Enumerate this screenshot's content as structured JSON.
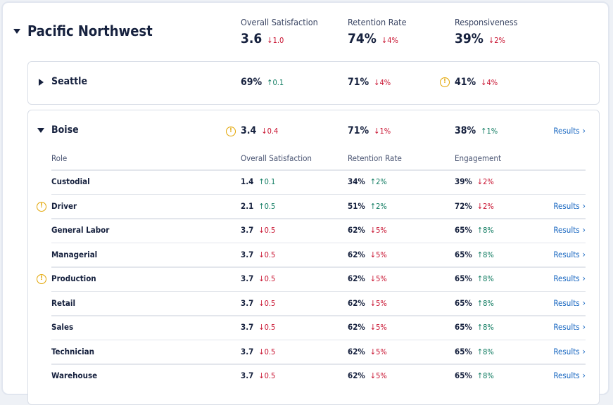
{
  "region": {
    "name": "Pacific Northwest",
    "metrics": [
      {
        "label": "Overall Satisfaction",
        "value": "3.6",
        "delta": "1.0",
        "dir": "down"
      },
      {
        "label": "Retention Rate",
        "value": "74%",
        "delta": "4%",
        "dir": "down"
      },
      {
        "label": "Responsiveness",
        "value": "39%",
        "delta": "2%",
        "dir": "down"
      }
    ]
  },
  "seattle": {
    "name": "Seattle",
    "metrics": [
      {
        "value": "69%",
        "delta": "0.1",
        "dir": "up",
        "warning": false
      },
      {
        "value": "71%",
        "delta": "4%",
        "dir": "down",
        "warning": false
      },
      {
        "value": "41%",
        "delta": "4%",
        "dir": "down",
        "warning": true
      }
    ]
  },
  "boise": {
    "name": "Boise",
    "results_label": "Results",
    "metrics": [
      {
        "value": "3.4",
        "delta": "0.4",
        "dir": "down",
        "warning": true
      },
      {
        "value": "71%",
        "delta": "1%",
        "dir": "down",
        "warning": false
      },
      {
        "value": "38%",
        "delta": "1%",
        "dir": "up",
        "warning": false
      }
    ],
    "columns": [
      "Role",
      "Overall Satisfaction",
      "Retention Rate",
      "Engagement"
    ],
    "rows": [
      {
        "role": "Custodial",
        "warning": false,
        "results": false,
        "cells": [
          [
            "1.4",
            "0.1",
            "up"
          ],
          [
            "34%",
            "2%",
            "up"
          ],
          [
            "39%",
            "2%",
            "down"
          ]
        ]
      },
      {
        "role": "Driver",
        "warning": true,
        "results": true,
        "cells": [
          [
            "2.1",
            "0.5",
            "up"
          ],
          [
            "51%",
            "2%",
            "up"
          ],
          [
            "72%",
            "2%",
            "down"
          ]
        ]
      },
      {
        "role": "General Labor",
        "warning": false,
        "results": true,
        "cells": [
          [
            "3.7",
            "0.5",
            "down"
          ],
          [
            "62%",
            "5%",
            "down"
          ],
          [
            "65%",
            "8%",
            "up"
          ]
        ]
      },
      {
        "role": "Managerial",
        "warning": false,
        "results": true,
        "cells": [
          [
            "3.7",
            "0.5",
            "down"
          ],
          [
            "62%",
            "5%",
            "down"
          ],
          [
            "65%",
            "8%",
            "up"
          ]
        ]
      },
      {
        "role": "Production",
        "warning": true,
        "results": true,
        "cells": [
          [
            "3.7",
            "0.5",
            "down"
          ],
          [
            "62%",
            "5%",
            "down"
          ],
          [
            "65%",
            "8%",
            "up"
          ]
        ]
      },
      {
        "role": "Retail",
        "warning": false,
        "results": true,
        "cells": [
          [
            "3.7",
            "0.5",
            "down"
          ],
          [
            "62%",
            "5%",
            "down"
          ],
          [
            "65%",
            "8%",
            "up"
          ]
        ]
      },
      {
        "role": "Sales",
        "warning": false,
        "results": true,
        "cells": [
          [
            "3.7",
            "0.5",
            "down"
          ],
          [
            "62%",
            "5%",
            "down"
          ],
          [
            "65%",
            "8%",
            "up"
          ]
        ]
      },
      {
        "role": "Technician",
        "warning": false,
        "results": true,
        "cells": [
          [
            "3.7",
            "0.5",
            "down"
          ],
          [
            "62%",
            "5%",
            "down"
          ],
          [
            "65%",
            "8%",
            "up"
          ]
        ]
      },
      {
        "role": "Warehouse",
        "warning": false,
        "results": true,
        "cells": [
          [
            "3.7",
            "0.5",
            "down"
          ],
          [
            "62%",
            "5%",
            "down"
          ],
          [
            "65%",
            "8%",
            "up"
          ]
        ]
      }
    ]
  },
  "colors": {
    "up": "#0d7a5f",
    "down": "#c8102e",
    "link": "#1565c0",
    "warning": "#e2a400"
  }
}
